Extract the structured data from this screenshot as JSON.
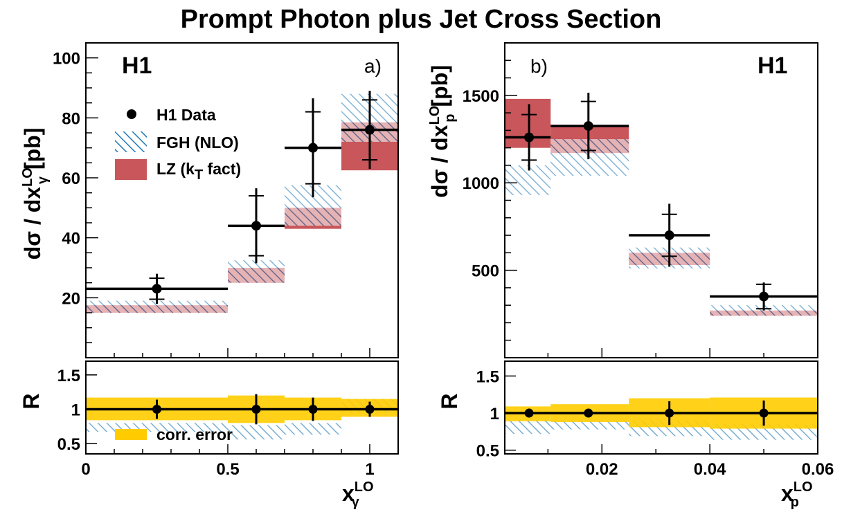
{
  "title": "Prompt Photon plus Jet Cross Section",
  "colors": {
    "data": "#000000",
    "fgh_hatch": "#1f78b4",
    "lz": "#c8565a",
    "corr": "#ffcc00"
  },
  "legend": {
    "data": "H1 Data",
    "fgh": "FGH (NLO)",
    "lz_main": "LZ (k",
    "lz_sub": "T",
    "lz_tail": " fact)",
    "corr": "corr. error"
  },
  "chart_data": [
    {
      "type": "bar",
      "panel_label": "a)",
      "experiment_label": "H1",
      "ylabel": {
        "main": "dσ / dx",
        "sup": "LO",
        "sub": "γ",
        "unit": "[pb]"
      },
      "xlabel": {
        "main": "x",
        "sup": "LO",
        "sub": "γ"
      },
      "xlim": [
        0,
        1.1
      ],
      "ylim": [
        0,
        105
      ],
      "yticks": [
        20,
        40,
        60,
        80,
        100
      ],
      "xticks": [
        0,
        0.5,
        1
      ],
      "xtick_labels": [
        "0",
        "0.5",
        "1"
      ],
      "ratio_ylim": [
        0.35,
        1.7
      ],
      "ratio_yticks": [
        0.5,
        1,
        1.5
      ],
      "ratio_ytick_labels": [
        "0.5",
        "1",
        "1.5"
      ],
      "ratio_ylabel": "R",
      "bins": [
        [
          0,
          0.5
        ],
        [
          0.5,
          0.7
        ],
        [
          0.7,
          0.9
        ],
        [
          0.9,
          1.1
        ]
      ],
      "data": {
        "x": [
          0.25,
          0.6,
          0.8,
          1.0
        ],
        "y": [
          23,
          44,
          70,
          76
        ],
        "stat": [
          3.5,
          10,
          12,
          10
        ],
        "tot": [
          5,
          12.5,
          16.5,
          13
        ]
      },
      "fgh_nlo": {
        "low": [
          15,
          25,
          44,
          72
        ],
        "high": [
          19,
          32.5,
          57.5,
          88
        ]
      },
      "lz_kt": {
        "low": [
          15,
          25,
          43,
          62.5
        ],
        "high": [
          17.5,
          30,
          50,
          78.5
        ]
      },
      "ratio": {
        "y": [
          1,
          1,
          1,
          1
        ],
        "err": [
          0.14,
          0.22,
          0.17,
          0.11
        ],
        "corr_low": [
          0.84,
          0.8,
          0.84,
          0.89
        ],
        "corr_high": [
          1.17,
          1.2,
          1.17,
          1.15
        ],
        "fgh_low": [
          0.67,
          0.56,
          0.63,
          0.95
        ],
        "fgh_high": [
          0.8,
          0.77,
          0.8,
          1.15
        ]
      }
    },
    {
      "type": "bar",
      "panel_label": "b)",
      "experiment_label": "H1",
      "ylabel": {
        "main": "dσ / dx",
        "sup": "LO",
        "sub": "p",
        "unit": "[pb]"
      },
      "xlabel": {
        "main": "x",
        "sup": "LO",
        "sub": "p"
      },
      "xlim": [
        0.002,
        0.06
      ],
      "ylim": [
        0,
        1800
      ],
      "yticks": [
        500,
        1000,
        1500
      ],
      "xticks": [
        0.02,
        0.04,
        0.06
      ],
      "xtick_labels": [
        "0.02",
        "0.04",
        "0.06"
      ],
      "ratio_ylim": [
        0.45,
        1.7
      ],
      "ratio_yticks": [
        0.5,
        1,
        1.5
      ],
      "ratio_ytick_labels": [
        "0.5",
        "1",
        "1.5"
      ],
      "ratio_ylabel": "R",
      "bins": [
        [
          0.002,
          0.0105
        ],
        [
          0.0105,
          0.025
        ],
        [
          0.025,
          0.04
        ],
        [
          0.04,
          0.06
        ]
      ],
      "data": {
        "x": [
          0.0065,
          0.0175,
          0.0325,
          0.05
        ],
        "y": [
          1260,
          1325,
          700,
          350
        ],
        "stat": [
          130,
          140,
          120,
          70
        ],
        "tot": [
          190,
          190,
          180,
          80
        ]
      },
      "fgh_nlo": {
        "low": [
          930,
          1040,
          510,
          240
        ],
        "high": [
          1100,
          1250,
          630,
          300
        ]
      },
      "lz_kt": {
        "low": [
          1200,
          1170,
          530,
          240
        ],
        "high": [
          1480,
          1320,
          600,
          270
        ]
      },
      "ratio": {
        "y": [
          1,
          1,
          1,
          1
        ],
        "err": [
          0.06,
          0.05,
          0.16,
          0.17
        ],
        "corr_low": [
          0.89,
          0.88,
          0.81,
          0.79
        ],
        "corr_high": [
          1.09,
          1.12,
          1.2,
          1.21
        ],
        "fgh_low": [
          0.72,
          0.78,
          0.69,
          0.64
        ],
        "fgh_high": [
          0.9,
          0.9,
          0.9,
          0.85
        ]
      }
    }
  ]
}
